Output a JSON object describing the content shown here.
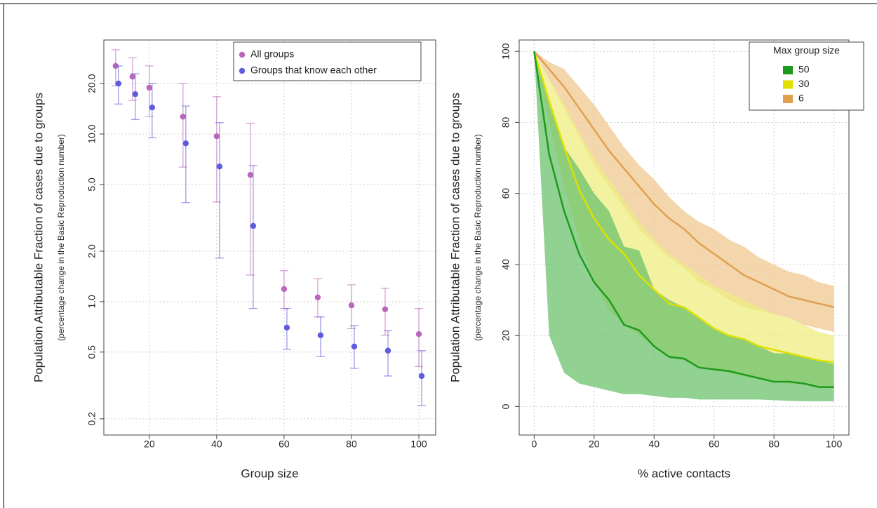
{
  "chart_data": [
    {
      "type": "scatter",
      "y_label": "Population Attributable Fraction of cases due to groups",
      "y_sublabel": "(percentage change in the Basic Reproduction number)",
      "x_label": "Group size",
      "x": [
        10,
        15,
        20,
        30,
        40,
        50,
        60,
        70,
        80,
        90,
        100
      ],
      "series": [
        {
          "name": "All groups",
          "color": "#bb66bb",
          "values": [
            25.5,
            22,
            18.9,
            12.7,
            9.7,
            5.7,
            1.19,
            1.06,
            0.95,
            0.9,
            0.64
          ],
          "lower": [
            19.4,
            15.9,
            12.7,
            6.35,
            3.93,
            1.44,
            0.91,
            0.81,
            0.69,
            0.63,
            0.41
          ],
          "upper": [
            31.8,
            28.5,
            25.5,
            20,
            16.7,
            11.6,
            1.53,
            1.37,
            1.26,
            1.2,
            0.91
          ]
        },
        {
          "name": "Groups that know each other",
          "color": "#5c5cdd",
          "values": [
            20,
            17.3,
            14.4,
            8.8,
            6.4,
            2.83,
            0.7,
            0.63,
            0.54,
            0.51,
            0.36
          ],
          "lower": [
            15.1,
            12.2,
            9.5,
            3.9,
            1.82,
            0.91,
            0.52,
            0.47,
            0.4,
            0.36,
            0.24
          ],
          "upper": [
            25.5,
            22.9,
            20,
            14.7,
            11.7,
            6.5,
            0.91,
            0.81,
            0.72,
            0.67,
            0.51
          ]
        }
      ],
      "xlim": [
        6.5,
        105
      ],
      "ylim": [
        0.16,
        36.4
      ],
      "log_y": true,
      "xticks": [
        20,
        40,
        60,
        80,
        100
      ],
      "yticks": [
        0.2,
        0.5,
        {
          "value": 1,
          "label": "1.0"
        },
        {
          "value": 2,
          "label": "2.0"
        },
        {
          "value": 5,
          "label": "5.0"
        },
        {
          "value": 10,
          "label": "10.0"
        },
        {
          "value": 20,
          "label": "20.0"
        }
      ],
      "grid": true,
      "legend": "top-right"
    },
    {
      "type": "line",
      "y_label": "Population Attributable Fraction of cases due to groups",
      "y_sublabel": "(percentage change in the Basic Reproduction number)",
      "x_label": "% active contacts",
      "legend_title": "Max group size",
      "x": [
        0,
        5,
        10,
        15,
        20,
        25,
        30,
        35,
        40,
        45,
        50,
        55,
        60,
        65,
        70,
        75,
        80,
        85,
        90,
        95,
        100
      ],
      "series": [
        {
          "name": "50",
          "color": "#1e9a1e",
          "band_color": "#6cc26c",
          "values": [
            100,
            71,
            55,
            43,
            35,
            30,
            23,
            21.5,
            17,
            14,
            13.5,
            11,
            10.5,
            10,
            9,
            8,
            7,
            7,
            6.5,
            5.5,
            5.5
          ],
          "lower": [
            100,
            20,
            9.5,
            6.5,
            5.5,
            4.5,
            3.5,
            3.5,
            3,
            2.5,
            2.5,
            2,
            2,
            2,
            2,
            2,
            1.8,
            1.6,
            1.5,
            1.5,
            1.5
          ],
          "upper": [
            100,
            85,
            73,
            67,
            60,
            55,
            45,
            44,
            33,
            30,
            28,
            25,
            22,
            20,
            19,
            17,
            15,
            15,
            14,
            13,
            12
          ]
        },
        {
          "name": "30",
          "color": "#e0e000",
          "band_color": "#eeee80",
          "values": [
            100,
            86,
            73,
            61,
            53,
            47,
            43,
            37,
            33,
            29,
            28,
            25,
            22,
            20,
            19,
            17,
            16,
            15,
            14,
            13,
            12.5
          ],
          "lower": [
            100,
            80,
            62,
            47,
            35,
            27,
            23,
            20,
            17,
            14,
            13,
            11,
            10,
            9.5,
            8.5,
            8,
            7,
            6.5,
            6,
            6,
            5.5
          ],
          "upper": [
            100,
            92,
            85,
            77,
            70,
            64,
            58,
            52,
            47,
            43,
            40,
            37,
            34,
            32,
            30,
            28,
            26,
            25,
            23,
            21,
            20
          ]
        },
        {
          "name": "6",
          "color": "#e0a050",
          "band_color": "#f0c890",
          "values": [
            100,
            95,
            90,
            84,
            78,
            72,
            67,
            62,
            57,
            53,
            50,
            46,
            43,
            40,
            37,
            35,
            33,
            31,
            30,
            29,
            28
          ],
          "lower": [
            100,
            92,
            84,
            76,
            68,
            62,
            56,
            50,
            46,
            42,
            39,
            35,
            33,
            30,
            28,
            27,
            26,
            25,
            23,
            22,
            21
          ],
          "upper": [
            100,
            97,
            95,
            90,
            85,
            79,
            73,
            68,
            64,
            59,
            55,
            52,
            50,
            47,
            45,
            42,
            40,
            38,
            37,
            35,
            34
          ]
        }
      ],
      "xlim": [
        -5,
        105
      ],
      "ylim": [
        -8,
        103.2
      ],
      "xticks": [
        0,
        20,
        40,
        60,
        80,
        100
      ],
      "yticks": [
        0,
        20,
        40,
        60,
        80,
        100
      ],
      "grid": true,
      "legend": "top-right"
    }
  ]
}
